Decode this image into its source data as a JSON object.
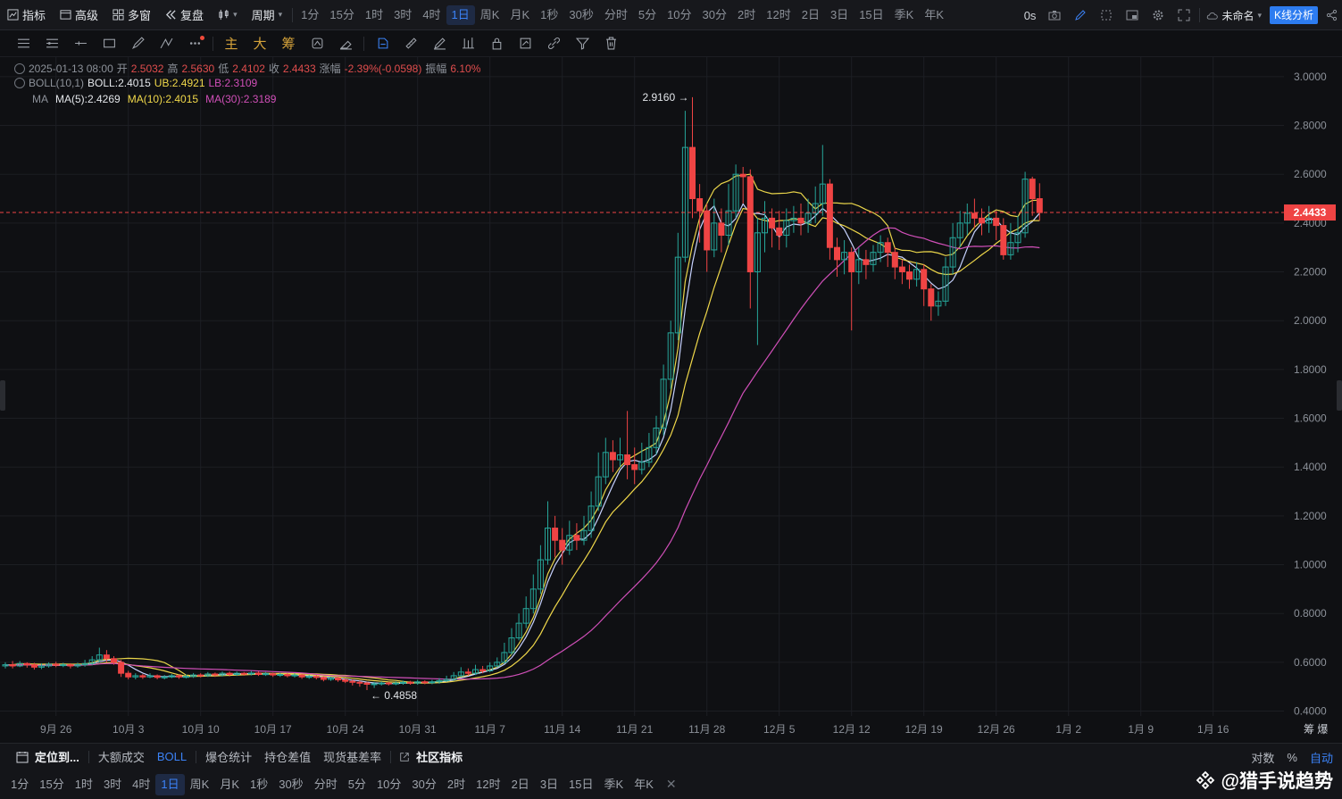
{
  "toolbar": {
    "indicators": "指标",
    "advanced": "高级",
    "multi_window": "多窗",
    "replay": "复盘",
    "period": "周期",
    "periods": [
      "1分",
      "15分",
      "1时",
      "3时",
      "4时",
      "1日",
      "周K",
      "月K",
      "1秒",
      "30秒",
      "分时",
      "5分",
      "10分",
      "30分",
      "2时",
      "12时",
      "2日",
      "3日",
      "15日",
      "季K",
      "年K"
    ],
    "active_period": "1日",
    "countdown": "0s",
    "unnamed": "未命名",
    "kline_analysis": "K线分析"
  },
  "drawing_tools": {
    "main": "主",
    "big": "大",
    "chips": "筹"
  },
  "info": {
    "date": "2025-01-13 08:00",
    "open_label": "开",
    "open": "2.5032",
    "high_label": "高",
    "high": "2.5630",
    "low_label": "低",
    "low": "2.4102",
    "close_label": "收",
    "close": "2.4433",
    "change_label": "涨幅",
    "change": "-2.39%(-0.0598)",
    "amp_label": "振幅",
    "amp": "6.10%",
    "boll_name": "BOLL(10,1)",
    "boll": "BOLL:2.4015",
    "ub": "UB:2.4921",
    "lb": "LB:2.3109",
    "ma_name": "MA",
    "ma5": "MA(5):2.4269",
    "ma10": "MA(10):2.4015",
    "ma30": "MA(30):2.3189"
  },
  "chart_data": {
    "type": "candlestick",
    "ylim": [
      0.38,
      3.08
    ],
    "y_ticks": [
      "3.0000",
      "2.8000",
      "2.6000",
      "2.4000",
      "2.2000",
      "2.0000",
      "1.8000",
      "1.6000",
      "1.4000",
      "1.2000",
      "1.0000",
      "0.8000",
      "0.6000",
      "0.4000"
    ],
    "x_ticks": [
      "9月 26",
      "10月 3",
      "10月 10",
      "10月 17",
      "10月 24",
      "10月 31",
      "11月 7",
      "11月 14",
      "11月 21",
      "11月 28",
      "12月 5",
      "12月 12",
      "12月 19",
      "12月 26",
      "1月 2",
      "1月 9",
      "1月 16"
    ],
    "x_tick_index": [
      7,
      17,
      27,
      37,
      47,
      57,
      67,
      77,
      87,
      97,
      107,
      117,
      127,
      137,
      147,
      157,
      167
    ],
    "last_price": "2.4433",
    "max_label": "2.9160",
    "min_label": "0.4858",
    "candles": [
      [
        0.585,
        0.59,
        0.6,
        0.575
      ],
      [
        0.59,
        0.585,
        0.605,
        0.575
      ],
      [
        0.585,
        0.595,
        0.605,
        0.58
      ],
      [
        0.595,
        0.59,
        0.6,
        0.578
      ],
      [
        0.59,
        0.58,
        0.598,
        0.57
      ],
      [
        0.58,
        0.585,
        0.595,
        0.572
      ],
      [
        0.585,
        0.592,
        0.6,
        0.578
      ],
      [
        0.592,
        0.588,
        0.602,
        0.58
      ],
      [
        0.588,
        0.59,
        0.598,
        0.58
      ],
      [
        0.59,
        0.585,
        0.596,
        0.575
      ],
      [
        0.585,
        0.59,
        0.598,
        0.578
      ],
      [
        0.59,
        0.595,
        0.61,
        0.582
      ],
      [
        0.595,
        0.61,
        0.625,
        0.588
      ],
      [
        0.61,
        0.63,
        0.66,
        0.6
      ],
      [
        0.63,
        0.615,
        0.65,
        0.6
      ],
      [
        0.615,
        0.6,
        0.625,
        0.59
      ],
      [
        0.6,
        0.555,
        0.61,
        0.54
      ],
      [
        0.555,
        0.54,
        0.565,
        0.53
      ],
      [
        0.54,
        0.545,
        0.555,
        0.53
      ],
      [
        0.545,
        0.54,
        0.552,
        0.532
      ],
      [
        0.54,
        0.545,
        0.555,
        0.535
      ],
      [
        0.545,
        0.538,
        0.55,
        0.53
      ],
      [
        0.538,
        0.54,
        0.548,
        0.53
      ],
      [
        0.54,
        0.545,
        0.552,
        0.535
      ],
      [
        0.545,
        0.54,
        0.55,
        0.532
      ],
      [
        0.54,
        0.542,
        0.55,
        0.534
      ],
      [
        0.542,
        0.548,
        0.556,
        0.536
      ],
      [
        0.548,
        0.545,
        0.555,
        0.538
      ],
      [
        0.545,
        0.552,
        0.56,
        0.54
      ],
      [
        0.552,
        0.548,
        0.558,
        0.54
      ],
      [
        0.548,
        0.555,
        0.562,
        0.542
      ],
      [
        0.555,
        0.55,
        0.562,
        0.542
      ],
      [
        0.55,
        0.555,
        0.562,
        0.544
      ],
      [
        0.555,
        0.552,
        0.56,
        0.545
      ],
      [
        0.552,
        0.556,
        0.565,
        0.546
      ],
      [
        0.556,
        0.55,
        0.562,
        0.544
      ],
      [
        0.55,
        0.553,
        0.56,
        0.544
      ],
      [
        0.553,
        0.548,
        0.558,
        0.54
      ],
      [
        0.548,
        0.55,
        0.556,
        0.54
      ],
      [
        0.55,
        0.545,
        0.555,
        0.538
      ],
      [
        0.545,
        0.548,
        0.555,
        0.538
      ],
      [
        0.548,
        0.54,
        0.552,
        0.532
      ],
      [
        0.54,
        0.542,
        0.548,
        0.532
      ],
      [
        0.542,
        0.538,
        0.548,
        0.53
      ],
      [
        0.538,
        0.53,
        0.542,
        0.522
      ],
      [
        0.53,
        0.535,
        0.54,
        0.524
      ],
      [
        0.535,
        0.528,
        0.54,
        0.52
      ],
      [
        0.528,
        0.522,
        0.535,
        0.515
      ],
      [
        0.522,
        0.518,
        0.53,
        0.505
      ],
      [
        0.518,
        0.515,
        0.525,
        0.5
      ],
      [
        0.515,
        0.51,
        0.52,
        0.486
      ],
      [
        0.51,
        0.512,
        0.52,
        0.495
      ],
      [
        0.512,
        0.515,
        0.522,
        0.505
      ],
      [
        0.515,
        0.512,
        0.52,
        0.505
      ],
      [
        0.512,
        0.515,
        0.522,
        0.506
      ],
      [
        0.515,
        0.518,
        0.525,
        0.508
      ],
      [
        0.518,
        0.515,
        0.524,
        0.508
      ],
      [
        0.515,
        0.52,
        0.528,
        0.508
      ],
      [
        0.52,
        0.518,
        0.526,
        0.51
      ],
      [
        0.518,
        0.52,
        0.528,
        0.51
      ],
      [
        0.52,
        0.525,
        0.535,
        0.512
      ],
      [
        0.525,
        0.53,
        0.545,
        0.52
      ],
      [
        0.53,
        0.545,
        0.56,
        0.525
      ],
      [
        0.545,
        0.56,
        0.58,
        0.54
      ],
      [
        0.56,
        0.555,
        0.575,
        0.545
      ],
      [
        0.555,
        0.57,
        0.59,
        0.548
      ],
      [
        0.57,
        0.565,
        0.585,
        0.555
      ],
      [
        0.565,
        0.585,
        0.6,
        0.56
      ],
      [
        0.585,
        0.6,
        0.62,
        0.578
      ],
      [
        0.6,
        0.64,
        0.68,
        0.595
      ],
      [
        0.64,
        0.7,
        0.74,
        0.63
      ],
      [
        0.7,
        0.76,
        0.8,
        0.69
      ],
      [
        0.76,
        0.82,
        0.87,
        0.74
      ],
      [
        0.82,
        0.9,
        0.96,
        0.8
      ],
      [
        0.9,
        1.02,
        1.08,
        0.88
      ],
      [
        1.02,
        1.15,
        1.26,
        1.0
      ],
      [
        1.15,
        1.1,
        1.2,
        1.03
      ],
      [
        1.1,
        1.06,
        1.15,
        1.0
      ],
      [
        1.06,
        1.12,
        1.18,
        1.04
      ],
      [
        1.12,
        1.1,
        1.17,
        1.06
      ],
      [
        1.1,
        1.14,
        1.2,
        1.08
      ],
      [
        1.14,
        1.24,
        1.3,
        1.11
      ],
      [
        1.24,
        1.36,
        1.46,
        1.22
      ],
      [
        1.36,
        1.46,
        1.52,
        1.33
      ],
      [
        1.46,
        1.43,
        1.51,
        1.38
      ],
      [
        1.43,
        1.45,
        1.52,
        1.4
      ],
      [
        1.45,
        1.41,
        1.63,
        1.35
      ],
      [
        1.41,
        1.39,
        1.48,
        1.33
      ],
      [
        1.39,
        1.42,
        1.5,
        1.37
      ],
      [
        1.42,
        1.48,
        1.54,
        1.4
      ],
      [
        1.48,
        1.56,
        1.61,
        1.45
      ],
      [
        1.56,
        1.76,
        1.82,
        1.53
      ],
      [
        1.76,
        1.95,
        2.0,
        1.72
      ],
      [
        1.95,
        2.26,
        2.36,
        1.92
      ],
      [
        2.26,
        2.71,
        2.86,
        2.24
      ],
      [
        2.71,
        2.5,
        2.916,
        2.42
      ],
      [
        2.5,
        2.45,
        2.56,
        2.32
      ],
      [
        2.45,
        2.29,
        2.48,
        2.2
      ],
      [
        2.29,
        2.4,
        2.5,
        2.26
      ],
      [
        2.4,
        2.35,
        2.46,
        2.28
      ],
      [
        2.35,
        2.45,
        2.56,
        2.31
      ],
      [
        2.45,
        2.6,
        2.64,
        2.42
      ],
      [
        2.6,
        2.59,
        2.63,
        2.48
      ],
      [
        2.59,
        2.2,
        2.62,
        2.05
      ],
      [
        2.2,
        2.36,
        2.42,
        1.9
      ],
      [
        2.36,
        2.42,
        2.49,
        2.28
      ],
      [
        2.42,
        2.38,
        2.46,
        2.3
      ],
      [
        2.38,
        2.35,
        2.45,
        2.29
      ],
      [
        2.35,
        2.41,
        2.46,
        2.3
      ],
      [
        2.41,
        2.42,
        2.47,
        2.36
      ],
      [
        2.42,
        2.4,
        2.48,
        2.35
      ],
      [
        2.4,
        2.44,
        2.5,
        2.36
      ],
      [
        2.44,
        2.48,
        2.55,
        2.4
      ],
      [
        2.48,
        2.56,
        2.72,
        2.43
      ],
      [
        2.56,
        2.3,
        2.58,
        2.25
      ],
      [
        2.3,
        2.25,
        2.34,
        2.18
      ],
      [
        2.25,
        2.28,
        2.33,
        2.19
      ],
      [
        2.28,
        2.2,
        2.3,
        1.96
      ],
      [
        2.2,
        2.25,
        2.3,
        2.15
      ],
      [
        2.25,
        2.23,
        2.29,
        2.17
      ],
      [
        2.23,
        2.28,
        2.31,
        2.2
      ],
      [
        2.28,
        2.32,
        2.35,
        2.24
      ],
      [
        2.32,
        2.28,
        2.34,
        2.22
      ],
      [
        2.28,
        2.22,
        2.3,
        2.17
      ],
      [
        2.22,
        2.2,
        2.25,
        2.15
      ],
      [
        2.2,
        2.17,
        2.23,
        2.13
      ],
      [
        2.17,
        2.21,
        2.24,
        2.14
      ],
      [
        2.21,
        2.13,
        2.23,
        2.06
      ],
      [
        2.13,
        2.06,
        2.15,
        2.0
      ],
      [
        2.06,
        2.08,
        2.12,
        2.02
      ],
      [
        2.08,
        2.22,
        2.26,
        2.06
      ],
      [
        2.22,
        2.34,
        2.4,
        2.19
      ],
      [
        2.34,
        2.4,
        2.45,
        2.3
      ],
      [
        2.4,
        2.44,
        2.48,
        2.35
      ],
      [
        2.44,
        2.42,
        2.5,
        2.38
      ],
      [
        2.42,
        2.4,
        2.46,
        2.35
      ],
      [
        2.4,
        2.42,
        2.47,
        2.36
      ],
      [
        2.42,
        2.39,
        2.45,
        2.33
      ],
      [
        2.39,
        2.27,
        2.42,
        2.25
      ],
      [
        2.27,
        2.32,
        2.4,
        2.25
      ],
      [
        2.32,
        2.36,
        2.43,
        2.28
      ],
      [
        2.36,
        2.58,
        2.61,
        2.34
      ],
      [
        2.58,
        2.5,
        2.59,
        2.43
      ],
      [
        2.5,
        2.443,
        2.563,
        2.41
      ]
    ]
  },
  "bottom": {
    "locate": "定位到...",
    "big_trades": "大额成交",
    "boll": "BOLL",
    "liquidation": "爆仓统计",
    "oi_diff": "持仓差值",
    "basis": "现货基差率",
    "community": "社区指标",
    "log": "对数",
    "percent": "%",
    "auto": "自动",
    "right_label": "筹 爆",
    "periods": [
      "1分",
      "15分",
      "1时",
      "3时",
      "4时",
      "1日",
      "周K",
      "月K",
      "1秒",
      "30秒",
      "分时",
      "5分",
      "10分",
      "30分",
      "2时",
      "12时",
      "2日",
      "3日",
      "15日",
      "季K",
      "年K"
    ],
    "active_period": "1日"
  },
  "watermark": "@猎手说趋势",
  "colors": {
    "up": "#26a69a",
    "down": "#ef4444",
    "ma5": "#c7d2fe",
    "ma10": "#f0d84a",
    "ma30": "#d04fb8",
    "accent": "#3b82f6"
  }
}
